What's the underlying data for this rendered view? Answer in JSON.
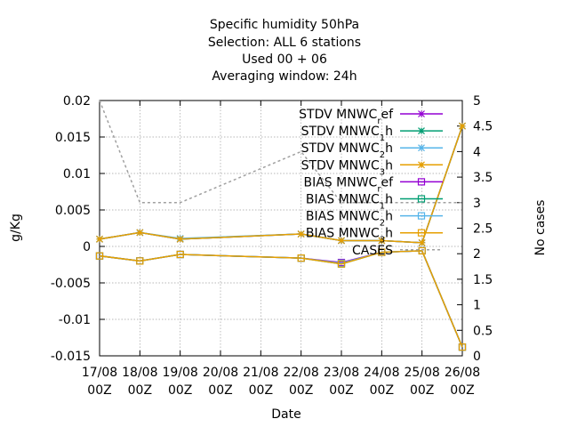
{
  "chart_data": {
    "type": "line",
    "title_lines": [
      "Specific humidity 50hPa",
      "Selection: ALL      6 stations",
      "Used  00 + 06",
      "Averaging window: 24h"
    ],
    "xlabel": "Date",
    "ylabel": "g/Kg",
    "y2label": "No cases",
    "ylim": [
      -0.015,
      0.02
    ],
    "y2lim": [
      0,
      5
    ],
    "yticks": [
      "-0.015",
      "-0.01",
      "-0.005",
      "0",
      "0.005",
      "0.01",
      "0.015",
      "0.02"
    ],
    "y2ticks": [
      "0",
      "0.5",
      "1",
      "1.5",
      "2",
      "2.5",
      "3",
      "3.5",
      "4",
      "4.5",
      "5"
    ],
    "categories": [
      [
        "17/08",
        "00Z"
      ],
      [
        "18/08",
        "00Z"
      ],
      [
        "19/08",
        "00Z"
      ],
      [
        "20/08",
        "00Z"
      ],
      [
        "21/08",
        "00Z"
      ],
      [
        "22/08",
        "00Z"
      ],
      [
        "23/08",
        "00Z"
      ],
      [
        "24/08",
        "00Z"
      ],
      [
        "25/08",
        "00Z"
      ],
      [
        "26/08",
        "00Z"
      ]
    ],
    "grid": true,
    "legend_position": "top-right",
    "series": [
      {
        "name": "STDV MNWC",
        "sub": "r",
        "tail": "ef",
        "kind": "stdv",
        "axis": "y",
        "color": "#9400d3",
        "x": [
          0,
          1,
          2,
          5,
          6,
          7,
          8,
          9
        ],
        "values": [
          0.001,
          0.0019,
          0.001,
          0.0017,
          0.0008,
          0.0008,
          0.0005,
          0.0165
        ]
      },
      {
        "name": "STDV MNWC",
        "sub": "1",
        "tail": "h",
        "kind": "stdv",
        "axis": "y",
        "color": "#009e73",
        "x": [
          0,
          1,
          2,
          5,
          6,
          7,
          8,
          9
        ],
        "values": [
          0.001,
          0.0019,
          0.001,
          0.0017,
          0.0008,
          0.0008,
          0.0005,
          0.0165
        ]
      },
      {
        "name": "STDV MNWC",
        "sub": "2",
        "tail": "h",
        "kind": "stdv",
        "axis": "y",
        "color": "#56b4e9",
        "x": [
          0,
          1,
          2,
          5,
          6,
          7,
          8,
          9
        ],
        "values": [
          0.001,
          0.0019,
          0.0011,
          0.0017,
          0.0008,
          0.0008,
          0.0005,
          0.0165
        ]
      },
      {
        "name": "STDV MNWC",
        "sub": "3",
        "tail": "h",
        "kind": "stdv",
        "axis": "y",
        "color": "#e69f00",
        "x": [
          0,
          1,
          2,
          5,
          6,
          7,
          8,
          9
        ],
        "values": [
          0.001,
          0.0019,
          0.001,
          0.0017,
          0.0008,
          0.0008,
          0.0005,
          0.0165
        ]
      },
      {
        "name": "BIAS MNWC",
        "sub": "r",
        "tail": "ef",
        "kind": "bias",
        "axis": "y",
        "color": "#9400d3",
        "x": [
          0,
          1,
          2,
          5,
          6,
          7,
          8,
          9
        ],
        "values": [
          -0.0013,
          -0.002,
          -0.0011,
          -0.0016,
          -0.0022,
          -0.0008,
          -0.0006,
          -0.0138
        ]
      },
      {
        "name": "BIAS MNWC",
        "sub": "1",
        "tail": "h",
        "kind": "bias",
        "axis": "y",
        "color": "#009e73",
        "x": [
          0,
          1,
          2,
          5,
          6,
          7,
          8,
          9
        ],
        "values": [
          -0.0013,
          -0.002,
          -0.0011,
          -0.0016,
          -0.0024,
          -0.0008,
          -0.0006,
          -0.0138
        ]
      },
      {
        "name": "BIAS MNWC",
        "sub": "2",
        "tail": "h",
        "kind": "bias",
        "axis": "y",
        "color": "#56b4e9",
        "x": [
          0,
          1,
          2,
          5,
          6,
          7,
          8,
          9
        ],
        "values": [
          -0.0013,
          -0.002,
          -0.0011,
          -0.0016,
          -0.0023,
          -0.0008,
          -0.0006,
          -0.0138
        ]
      },
      {
        "name": "BIAS MNWC",
        "sub": "3",
        "tail": "h",
        "kind": "bias",
        "axis": "y",
        "color": "#e69f00",
        "x": [
          0,
          1,
          2,
          5,
          6,
          7,
          8,
          9
        ],
        "values": [
          -0.0013,
          -0.002,
          -0.0011,
          -0.0016,
          -0.0024,
          -0.0008,
          -0.0006,
          -0.0138
        ]
      },
      {
        "name": "CASES",
        "sub": "",
        "tail": "",
        "kind": "cases",
        "axis": "y2",
        "color": "#a0a0a0",
        "x": [
          0,
          1,
          2,
          5,
          6,
          7,
          8,
          9
        ],
        "values": [
          5,
          3,
          3,
          4,
          3,
          3,
          3,
          3
        ]
      }
    ]
  }
}
